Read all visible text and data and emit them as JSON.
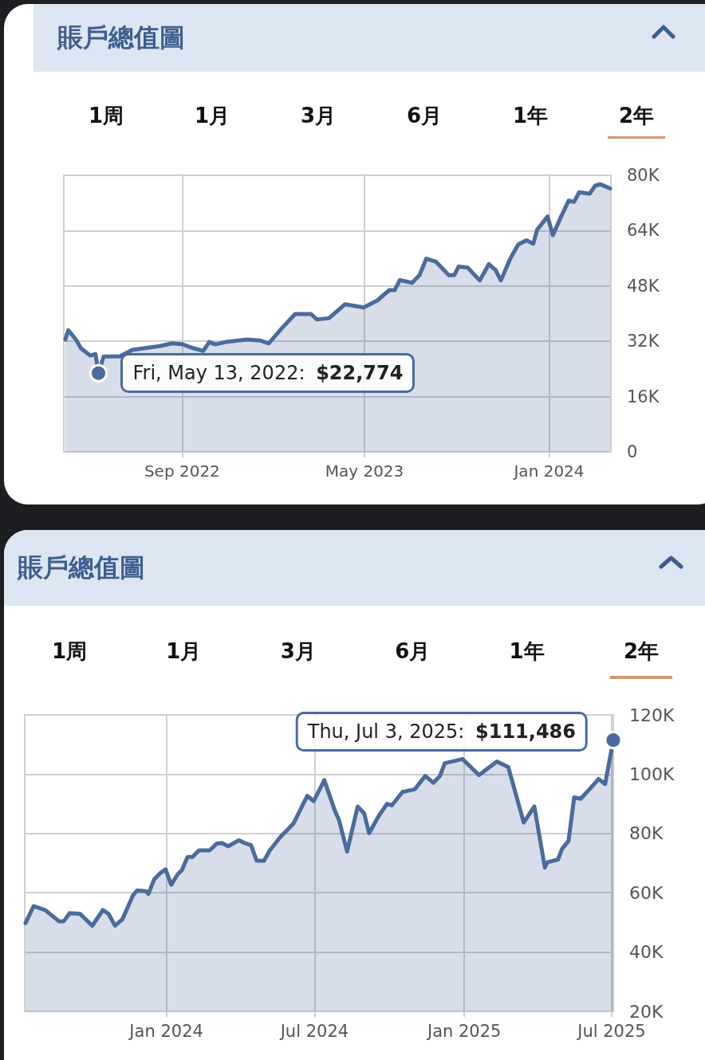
{
  "chart_data": [
    {
      "type": "area",
      "title": "賬戶總值圖",
      "color": "#4a6b9d",
      "grid": true,
      "annotations": [
        "1周",
        "1月",
        "3月",
        "6月",
        "1年",
        "2年",
        {
          "text": "Fri, May 13, 2022: $22,774",
          "x": "2022-05-13",
          "y": 22774
        }
      ],
      "xlim": [
        "2022-03-28",
        "2024-03-23"
      ],
      "xticks": [
        {
          "value": "2022-09-01",
          "label": "Sep 2022"
        },
        {
          "value": "2023-05-01",
          "label": "May 2023"
        },
        {
          "value": "2024-01-01",
          "label": "Jan 2024"
        }
      ],
      "ylim": [
        0,
        80000
      ],
      "yticks": [
        0,
        {
          "value": 16000,
          "label": "16K"
        },
        {
          "value": 32000,
          "label": "32K"
        },
        {
          "value": 48000,
          "label": "48K"
        },
        {
          "value": 64000,
          "label": "64K"
        },
        {
          "value": 80000,
          "label": "80K"
        }
      ],
      "x": [
        "2022-03-30",
        "2022-04-03",
        "2022-04-13",
        "2022-04-20",
        "2022-05-02",
        "2022-05-09",
        "2022-05-13",
        "2022-05-20",
        "2022-06-10",
        "2022-06-27",
        "2022-08-02",
        "2022-08-19",
        "2022-09-02",
        "2022-09-13",
        "2022-09-29",
        "2022-10-07",
        "2022-10-15",
        "2022-10-29",
        "2022-11-26",
        "2022-12-14",
        "2022-12-25",
        "2023-01-11",
        "2023-01-29",
        "2023-02-19",
        "2023-02-27",
        "2023-03-15",
        "2023-04-05",
        "2023-04-30",
        "2023-05-18",
        "2023-06-03",
        "2023-06-10",
        "2023-06-17",
        "2023-07-03",
        "2023-07-13",
        "2023-07-22",
        "2023-08-04",
        "2023-08-21",
        "2023-08-28",
        "2023-09-03",
        "2023-09-15",
        "2023-10-01",
        "2023-10-13",
        "2023-10-22",
        "2023-10-29",
        "2023-11-10",
        "2023-11-21",
        "2023-12-02",
        "2023-12-11",
        "2023-12-16",
        "2023-12-30",
        "2024-01-06",
        "2024-01-17",
        "2024-01-27",
        "2024-02-03",
        "2024-02-10",
        "2024-02-24",
        "2024-03-02",
        "2024-03-09",
        "2024-03-22"
      ],
      "values": [
        32500,
        35200,
        32500,
        29900,
        27900,
        28300,
        22774,
        27600,
        27600,
        29500,
        30600,
        31400,
        31100,
        30200,
        29200,
        31800,
        31100,
        31800,
        32500,
        32200,
        31400,
        35700,
        39900,
        39900,
        38300,
        38700,
        42700,
        41800,
        43800,
        46800,
        46800,
        49700,
        48900,
        51100,
        55900,
        55000,
        51100,
        51100,
        53600,
        53300,
        49600,
        54300,
        52600,
        49600,
        55700,
        60000,
        61200,
        60200,
        64200,
        68100,
        62700,
        68100,
        72700,
        72300,
        75100,
        74700,
        77000,
        77400,
        76200
      ]
    },
    {
      "type": "area",
      "title": "賬戶總值圖",
      "color": "#4a6b9d",
      "grid": true,
      "annotations": [
        "1周",
        "1月",
        "3月",
        "6月",
        "1年",
        "2年",
        {
          "text": "Thu, Jul 3, 2025: $111,486",
          "x": "2025-07-03",
          "y": 111486
        }
      ],
      "xlim": [
        "2023-07-11",
        "2025-07-03"
      ],
      "xticks": [
        {
          "value": "2024-01-01",
          "label": "Jan 2024"
        },
        {
          "value": "2024-07-01",
          "label": "Jul 2024"
        },
        {
          "value": "2025-01-01",
          "label": "Jan 2025"
        },
        {
          "value": "2025-07-01",
          "label": "Jul 2025"
        }
      ],
      "ylim": [
        20000,
        120000
      ],
      "yticks": [
        {
          "value": 20000,
          "label": "20K"
        },
        {
          "value": 40000,
          "label": "40K"
        },
        {
          "value": 60000,
          "label": "60K"
        },
        {
          "value": 80000,
          "label": "80K"
        },
        {
          "value": 100000,
          "label": "100K"
        },
        {
          "value": 120000,
          "label": "120K"
        }
      ],
      "x": [
        "2023-07-12",
        "2023-07-22",
        "2023-08-05",
        "2023-08-22",
        "2023-08-28",
        "2023-09-04",
        "2023-09-17",
        "2023-10-02",
        "2023-10-15",
        "2023-10-22",
        "2023-10-30",
        "2023-11-08",
        "2023-11-21",
        "2023-11-26",
        "2023-12-07",
        "2023-12-10",
        "2023-12-17",
        "2023-12-24",
        "2023-12-31",
        "2024-01-07",
        "2024-01-15",
        "2024-01-20",
        "2024-01-27",
        "2024-02-02",
        "2024-02-10",
        "2024-02-23",
        "2024-03-03",
        "2024-03-09",
        "2024-03-17",
        "2024-03-30",
        "2024-04-08",
        "2024-04-14",
        "2024-04-21",
        "2024-04-30",
        "2024-05-07",
        "2024-05-20",
        "2024-06-05",
        "2024-06-22",
        "2024-06-30",
        "2024-07-13",
        "2024-07-26",
        "2024-07-31",
        "2024-08-10",
        "2024-08-23",
        "2024-08-31",
        "2024-09-06",
        "2024-09-18",
        "2024-09-28",
        "2024-10-04",
        "2024-10-17",
        "2024-11-01",
        "2024-11-14",
        "2024-11-24",
        "2024-12-02",
        "2024-12-08",
        "2024-12-30",
        "2025-01-19",
        "2025-02-10",
        "2025-02-24",
        "2025-03-15",
        "2025-03-28",
        "2025-04-10",
        "2025-04-13",
        "2025-04-26",
        "2025-05-01",
        "2025-05-09",
        "2025-05-16",
        "2025-05-24",
        "2025-06-05",
        "2025-06-15",
        "2025-06-23",
        "2025-07-03"
      ],
      "values": [
        49800,
        55500,
        54200,
        50400,
        50400,
        53100,
        52900,
        48900,
        54200,
        52900,
        48900,
        51100,
        59100,
        60800,
        60500,
        59600,
        64500,
        66500,
        67900,
        62700,
        66300,
        67600,
        72100,
        72100,
        74300,
        74300,
        76600,
        76800,
        75700,
        77700,
        76600,
        76100,
        70800,
        70800,
        74300,
        78800,
        83300,
        92700,
        90900,
        98000,
        87700,
        84600,
        73900,
        89100,
        86800,
        80100,
        86000,
        90000,
        89500,
        94000,
        94900,
        99400,
        97100,
        99400,
        103700,
        105100,
        99700,
        104300,
        102400,
        83700,
        89100,
        68500,
        70300,
        71200,
        74800,
        77500,
        92200,
        91700,
        95300,
        98400,
        96700,
        111486
      ]
    }
  ]
}
